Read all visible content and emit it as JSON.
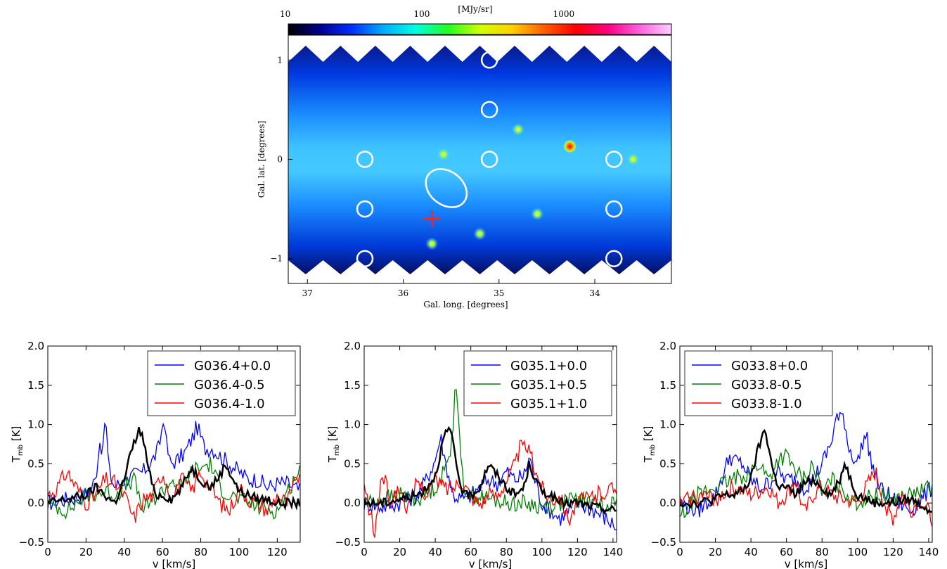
{
  "map": {
    "colorbar": {
      "ticks": [
        {
          "label": "10",
          "value": 10
        },
        {
          "label": "100",
          "value": 100
        },
        {
          "label": "1000",
          "value": 1000
        }
      ],
      "unit": "[MJy/sr]",
      "range": [
        10,
        5000
      ],
      "colors": [
        "#000000",
        "#000090",
        "#0030ff",
        "#00b0ff",
        "#00ffe0",
        "#20ff20",
        "#d0ff00",
        "#ffd000",
        "#ff6000",
        "#ff0000",
        "#ff0080",
        "#ff60e0",
        "#ffd0ff"
      ]
    },
    "xlabel": "Gal. long. [degrees]",
    "ylabel": "Gal. lat. [degrees]",
    "x_ticks": [
      {
        "label": "37",
        "value": 37
      },
      {
        "label": "36",
        "value": 36
      },
      {
        "label": "35",
        "value": 35
      },
      {
        "label": "34",
        "value": 34
      }
    ],
    "y_ticks": [
      {
        "label": "1",
        "value": 1
      },
      {
        "label": "0",
        "value": 0
      },
      {
        "label": "−1",
        "value": -1
      }
    ],
    "xlim": [
      37.2,
      33.2
    ],
    "ylim": [
      -1.25,
      1.25
    ],
    "circles": [
      {
        "l": 36.4,
        "b": 0.0
      },
      {
        "l": 36.4,
        "b": -0.5
      },
      {
        "l": 36.4,
        "b": -1.0
      },
      {
        "l": 35.1,
        "b": 1.0
      },
      {
        "l": 35.1,
        "b": 0.5
      },
      {
        "l": 35.1,
        "b": 0.0
      },
      {
        "l": 33.8,
        "b": 0.0
      },
      {
        "l": 33.8,
        "b": -0.5
      },
      {
        "l": 33.8,
        "b": -1.0
      }
    ],
    "ellipse": {
      "l": 35.55,
      "b": -0.29,
      "semi_major_deg": 0.26,
      "semi_minor_deg": 0.12,
      "angle_deg": -38
    },
    "cross": {
      "l": 35.7,
      "b": -0.6,
      "color": "#ff2020"
    },
    "bright_sources": [
      {
        "l": 34.26,
        "b": 0.13,
        "flux": 2000
      },
      {
        "l": 35.2,
        "b": -0.75,
        "flux": 140
      },
      {
        "l": 35.58,
        "b": 0.05,
        "flux": 120
      },
      {
        "l": 34.8,
        "b": 0.3,
        "flux": 110
      },
      {
        "l": 35.7,
        "b": -0.85,
        "flux": 100
      },
      {
        "l": 33.6,
        "b": 0.0,
        "flux": 100
      },
      {
        "l": 34.6,
        "b": -0.55,
        "flux": 90
      }
    ]
  },
  "chart_data": [
    {
      "type": "line",
      "xlabel": "v [km/s]",
      "ylabel": "T",
      "ylabel_sub": "mb",
      "ylabel_unit": " [K]",
      "xlim": [
        0,
        132
      ],
      "ylim": [
        -0.5,
        2.0
      ],
      "x_ticks": [
        0,
        20,
        40,
        60,
        80,
        100,
        120
      ],
      "y_ticks": [
        {
          "value": -0.5,
          "label": "−0.5"
        },
        {
          "value": 0,
          "label": "0.0"
        },
        {
          "value": 0.5,
          "label": "0.5"
        },
        {
          "value": 1.0,
          "label": "1.0"
        },
        {
          "value": 1.5,
          "label": "1.5"
        },
        {
          "value": 2.0,
          "label": "2.0"
        }
      ],
      "legend_position": "top-right",
      "series": [
        {
          "name": "G036.4+0.0",
          "color": "#0000ff",
          "x": [
            0,
            10,
            20,
            25,
            27,
            29,
            30,
            32,
            35,
            40,
            45,
            50,
            55,
            58,
            61,
            62,
            64,
            68,
            72,
            76,
            78,
            82,
            86,
            90,
            95,
            100,
            105,
            110,
            115,
            120,
            125,
            132
          ],
          "y": [
            0.0,
            0.05,
            0.1,
            0.3,
            0.8,
            0.65,
            1.17,
            0.4,
            0.2,
            0.3,
            0.35,
            0.4,
            0.55,
            0.7,
            1.12,
            0.75,
            0.5,
            0.55,
            0.65,
            0.85,
            0.98,
            0.7,
            0.7,
            0.6,
            0.5,
            0.4,
            0.3,
            0.3,
            0.2,
            0.25,
            0.25,
            0.15
          ]
        },
        {
          "name": "G036.4-0.5",
          "color": "#008000",
          "x": [
            0,
            10,
            20,
            30,
            35,
            40,
            45,
            50,
            55,
            60,
            65,
            70,
            75,
            80,
            85,
            90,
            95,
            100,
            105,
            110,
            120,
            132
          ],
          "y": [
            0.0,
            -0.1,
            0.1,
            0.15,
            0.1,
            0.2,
            0.3,
            -0.1,
            0.05,
            0.15,
            0.3,
            0.2,
            0.4,
            0.45,
            0.5,
            0.2,
            0.1,
            0.05,
            0.0,
            -0.05,
            -0.1,
            0.45
          ]
        },
        {
          "name": "G036.4-1.0",
          "color": "#ff0000",
          "x": [
            0,
            5,
            10,
            15,
            20,
            25,
            30,
            35,
            40,
            45,
            50,
            55,
            60,
            65,
            70,
            75,
            80,
            85,
            90,
            95,
            100,
            105,
            110,
            115,
            120,
            125,
            132
          ],
          "y": [
            0.1,
            0.2,
            0.4,
            0.2,
            0.0,
            0.1,
            0.3,
            0.25,
            0.1,
            -0.2,
            0.05,
            0.1,
            0.4,
            0.05,
            0.3,
            0.15,
            0.4,
            0.2,
            0.0,
            -0.1,
            0.2,
            0.05,
            0.0,
            -0.1,
            0.1,
            0.0,
            0.4
          ]
        },
        {
          "name": "",
          "color": "#000000",
          "x": [
            0,
            10,
            20,
            25,
            30,
            35,
            40,
            43,
            45,
            48,
            50,
            53,
            56,
            60,
            65,
            70,
            75,
            80,
            85,
            90,
            93,
            97,
            100,
            105,
            110,
            115,
            120,
            125,
            132
          ],
          "y": [
            0.0,
            0.05,
            0.1,
            0.2,
            0.1,
            0.0,
            0.3,
            0.6,
            0.75,
            0.95,
            0.8,
            0.4,
            0.1,
            0.1,
            0.05,
            0.2,
            0.45,
            0.3,
            0.2,
            0.35,
            0.5,
            0.3,
            0.15,
            0.1,
            0.05,
            0.05,
            0.0,
            0.0,
            0.0
          ]
        }
      ]
    },
    {
      "type": "line",
      "xlabel": "v [km/s]",
      "ylabel": "T",
      "ylabel_sub": "mb",
      "ylabel_unit": " [K]",
      "xlim": [
        0,
        142
      ],
      "ylim": [
        -0.5,
        2.0
      ],
      "x_ticks": [
        0,
        20,
        40,
        60,
        80,
        100,
        120,
        140
      ],
      "y_ticks": [
        {
          "value": -0.5,
          "label": "−0.5"
        },
        {
          "value": 0,
          "label": "0.0"
        },
        {
          "value": 0.5,
          "label": "0.5"
        },
        {
          "value": 1.0,
          "label": "1.0"
        },
        {
          "value": 1.5,
          "label": "1.5"
        },
        {
          "value": 2.0,
          "label": "2.0"
        }
      ],
      "legend_position": "top-right",
      "series": [
        {
          "name": "G035.1+0.0",
          "color": "#0000ff",
          "x": [
            0,
            10,
            20,
            30,
            35,
            40,
            43,
            45,
            48,
            50,
            55,
            60,
            65,
            70,
            75,
            80,
            85,
            90,
            93,
            96,
            100,
            105,
            110,
            120,
            130,
            142
          ],
          "y": [
            0.0,
            -0.05,
            0.0,
            0.1,
            0.3,
            0.55,
            0.85,
            0.6,
            0.3,
            0.1,
            0.05,
            0.1,
            0.2,
            0.3,
            0.25,
            0.4,
            0.3,
            0.35,
            0.6,
            0.3,
            0.0,
            -0.1,
            -0.2,
            0.0,
            -0.1,
            -0.3
          ]
        },
        {
          "name": "G035.1+0.5",
          "color": "#008000",
          "x": [
            0,
            10,
            20,
            30,
            40,
            45,
            48,
            50,
            51,
            52,
            54,
            56,
            60,
            70,
            80,
            90,
            100,
            110,
            120,
            130,
            142
          ],
          "y": [
            0.0,
            0.05,
            0.1,
            0.05,
            0.2,
            0.4,
            0.6,
            1.0,
            1.4,
            1.57,
            0.6,
            0.2,
            0.1,
            0.05,
            0.0,
            0.0,
            -0.05,
            0.0,
            0.05,
            0.0,
            0.0
          ]
        },
        {
          "name": "G035.1+1.0",
          "color": "#ff0000",
          "x": [
            0,
            3,
            6,
            10,
            15,
            20,
            25,
            30,
            35,
            40,
            45,
            50,
            55,
            60,
            65,
            70,
            75,
            80,
            85,
            88,
            90,
            92,
            95,
            100,
            105,
            110,
            115,
            120,
            130,
            142
          ],
          "y": [
            0.2,
            -0.1,
            -0.4,
            0.4,
            0.0,
            0.2,
            -0.1,
            0.3,
            0.1,
            0.3,
            0.2,
            0.2,
            0.3,
            0.1,
            0.0,
            0.1,
            0.1,
            0.3,
            0.5,
            0.72,
            0.7,
            0.72,
            0.5,
            0.2,
            0.05,
            0.1,
            -0.2,
            0.0,
            0.1,
            0.2
          ]
        },
        {
          "name": "",
          "color": "#000000",
          "x": [
            0,
            10,
            20,
            30,
            35,
            40,
            43,
            45,
            48,
            50,
            53,
            56,
            60,
            65,
            70,
            73,
            77,
            80,
            85,
            90,
            93,
            96,
            100,
            105,
            110,
            120,
            130,
            142
          ],
          "y": [
            0.0,
            0.0,
            0.05,
            0.1,
            0.2,
            0.35,
            0.65,
            0.85,
            0.95,
            0.75,
            0.35,
            0.1,
            0.1,
            0.2,
            0.5,
            0.4,
            0.3,
            0.2,
            0.1,
            0.2,
            0.52,
            0.3,
            0.15,
            0.1,
            0.0,
            0.0,
            -0.05,
            -0.1
          ]
        }
      ]
    },
    {
      "type": "line",
      "xlabel": "v [km/s]",
      "ylabel": "T",
      "ylabel_sub": "mb",
      "ylabel_unit": " [K]",
      "xlim": [
        0,
        142
      ],
      "ylim": [
        -0.5,
        2.0
      ],
      "x_ticks": [
        0,
        20,
        40,
        60,
        80,
        100,
        120,
        140
      ],
      "y_ticks": [
        {
          "value": -0.5,
          "label": "−0.5"
        },
        {
          "value": 0,
          "label": "0.0"
        },
        {
          "value": 0.5,
          "label": "0.5"
        },
        {
          "value": 1.0,
          "label": "1.0"
        },
        {
          "value": 1.5,
          "label": "1.5"
        },
        {
          "value": 2.0,
          "label": "2.0"
        }
      ],
      "legend_position": "top-left",
      "series": [
        {
          "name": "G033.8+0.0",
          "color": "#0000ff",
          "x": [
            0,
            10,
            20,
            25,
            28,
            30,
            35,
            40,
            45,
            50,
            55,
            60,
            65,
            70,
            75,
            80,
            85,
            88,
            90,
            92,
            95,
            100,
            103,
            105,
            108,
            112,
            120,
            130,
            142
          ],
          "y": [
            0.0,
            -0.1,
            0.1,
            0.4,
            0.6,
            0.55,
            0.5,
            0.3,
            0.2,
            0.25,
            0.4,
            0.3,
            0.3,
            0.2,
            0.3,
            0.5,
            0.75,
            1.1,
            1.05,
            1.14,
            0.7,
            0.5,
            0.8,
            0.85,
            0.5,
            0.2,
            0.05,
            -0.1,
            0.2
          ]
        },
        {
          "name": "G033.8-0.5",
          "color": "#008000",
          "x": [
            0,
            10,
            20,
            30,
            40,
            45,
            50,
            55,
            60,
            65,
            70,
            75,
            80,
            85,
            90,
            100,
            110,
            120,
            130,
            142
          ],
          "y": [
            -0.2,
            0.1,
            0.2,
            0.3,
            0.4,
            0.5,
            0.3,
            0.55,
            0.6,
            0.4,
            0.3,
            0.5,
            0.1,
            0.3,
            0.2,
            0.0,
            0.1,
            0.05,
            0.1,
            0.2
          ]
        },
        {
          "name": "G033.8-1.0",
          "color": "#ff0000",
          "x": [
            0,
            10,
            20,
            30,
            40,
            50,
            55,
            60,
            65,
            70,
            75,
            80,
            85,
            90,
            100,
            105,
            110,
            115,
            120,
            125,
            130,
            135,
            142
          ],
          "y": [
            0.0,
            0.1,
            0.05,
            0.2,
            0.1,
            0.2,
            0.0,
            0.1,
            0.3,
            -0.15,
            0.1,
            0.2,
            0.1,
            0.05,
            0.0,
            0.2,
            0.4,
            0.0,
            -0.2,
            0.1,
            -0.1,
            0.05,
            -0.2
          ]
        },
        {
          "name": "",
          "color": "#000000",
          "x": [
            0,
            10,
            20,
            25,
            30,
            35,
            40,
            43,
            45,
            48,
            50,
            53,
            56,
            60,
            65,
            70,
            75,
            80,
            85,
            90,
            93,
            96,
            100,
            105,
            110,
            120,
            130,
            142
          ],
          "y": [
            0.0,
            0.0,
            0.05,
            0.1,
            0.1,
            0.15,
            0.3,
            0.6,
            0.75,
            0.95,
            0.7,
            0.35,
            0.2,
            0.2,
            0.1,
            0.25,
            0.3,
            0.2,
            0.1,
            0.3,
            0.52,
            0.3,
            0.1,
            0.05,
            0.0,
            0.0,
            0.05,
            -0.1
          ]
        }
      ]
    }
  ]
}
